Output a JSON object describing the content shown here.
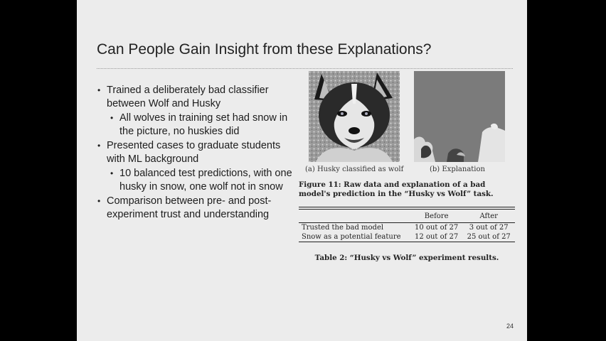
{
  "slide": {
    "title": "Can People Gain Insight from these Explanations?",
    "bullets": [
      {
        "level": 1,
        "text": "Trained a deliberately bad classifier between Wolf and Husky"
      },
      {
        "level": 2,
        "text": "All wolves in training set had snow in the picture, no huskies did"
      },
      {
        "level": 1,
        "text": "Presented cases to graduate students with ML background"
      },
      {
        "level": 2,
        "text": "10 balanced test predictions, with one husky in snow, one wolf not in snow"
      },
      {
        "level": 1,
        "text": "Comparison between pre- and post-experiment trust and understanding"
      }
    ],
    "figure": {
      "caption_a": "(a) Husky classified as wolf",
      "caption_b": "(b) Explanation",
      "caption": "Figure 11:  Raw data and explanation of a bad model's prediction in the “Husky vs Wolf” task."
    },
    "table": {
      "headers": [
        "",
        "Before",
        "After"
      ],
      "rows": [
        [
          "Trusted the bad model",
          "10 out of 27",
          "3 out of 27"
        ],
        [
          "Snow as a potential feature",
          "12 out of 27",
          "25 out of 27"
        ]
      ],
      "caption": "Table 2: “Husky vs Wolf” experiment results."
    },
    "page_number": "24"
  }
}
